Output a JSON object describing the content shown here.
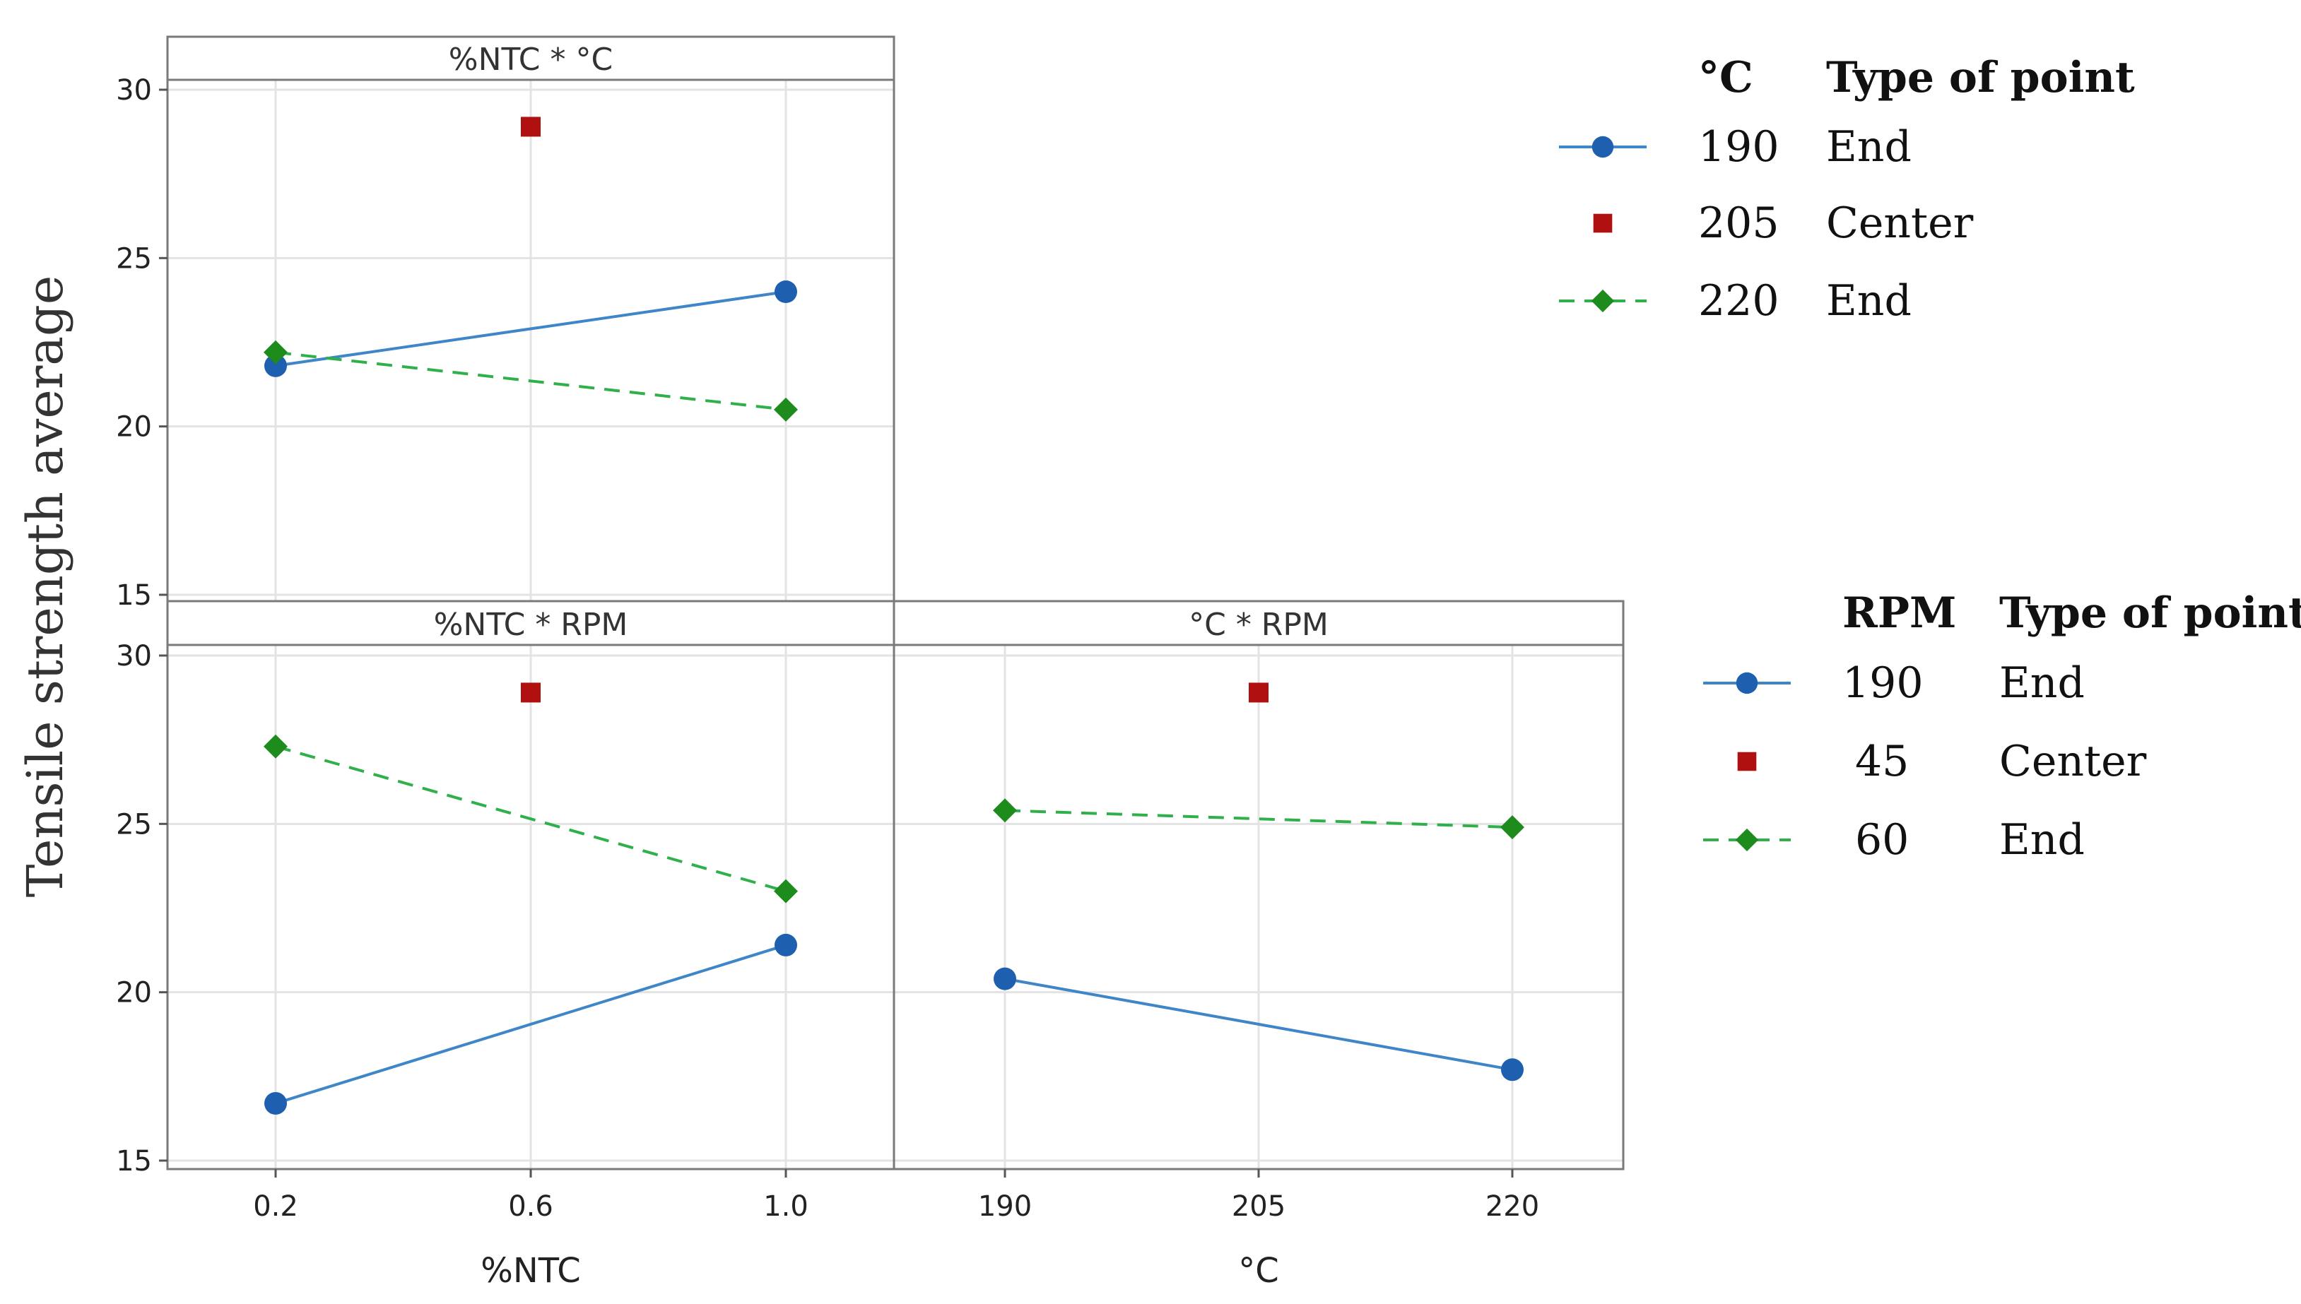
{
  "chart_data": {
    "type": "line",
    "title": "",
    "ylabel": "Tensile strength average",
    "ylim": [
      15,
      30
    ],
    "yticks": [
      "15",
      "20",
      "25",
      "30"
    ],
    "colors": {
      "blue": "#1f5fb0",
      "red": "#b01010",
      "green": "#1d8c1d",
      "line_blue": "#3f86c9",
      "line_green": "#2fb04a"
    },
    "panels": [
      {
        "id": "ntc_c",
        "title": "%NTC * °C",
        "xticks": [
          "0.2",
          "0.6",
          "1.0"
        ],
        "x": [
          0.2,
          0.6,
          1.0
        ],
        "series": [
          {
            "name": "190",
            "type_of_point": "End",
            "style": "solid-circle",
            "x": [
              0.2,
              1.0
            ],
            "values": [
              21.8,
              24.0
            ]
          },
          {
            "name": "205",
            "type_of_point": "Center",
            "style": "square",
            "x": [
              0.6
            ],
            "values": [
              28.9
            ]
          },
          {
            "name": "220",
            "type_of_point": "End",
            "style": "dashed-diamond",
            "x": [
              0.2,
              1.0
            ],
            "values": [
              22.2,
              20.5
            ]
          }
        ]
      },
      {
        "id": "ntc_rpm",
        "title": "%NTC * RPM",
        "xlabel": "%NTC",
        "xticks": [
          "0.2",
          "0.6",
          "1.0"
        ],
        "x": [
          0.2,
          0.6,
          1.0
        ],
        "series": [
          {
            "name": "190",
            "type_of_point": "End",
            "style": "solid-circle",
            "x": [
              0.2,
              1.0
            ],
            "values": [
              16.7,
              21.4
            ]
          },
          {
            "name": "45",
            "type_of_point": "Center",
            "style": "square",
            "x": [
              0.6
            ],
            "values": [
              28.9
            ]
          },
          {
            "name": "60",
            "type_of_point": "End",
            "style": "dashed-diamond",
            "x": [
              0.2,
              1.0
            ],
            "values": [
              27.3,
              23.0
            ]
          }
        ]
      },
      {
        "id": "c_rpm",
        "title": "°C * RPM",
        "xlabel": "°C",
        "xticks": [
          "190",
          "205",
          "220"
        ],
        "x": [
          190,
          205,
          220
        ],
        "series": [
          {
            "name": "190",
            "type_of_point": "End",
            "style": "solid-circle",
            "x": [
              190,
              220
            ],
            "values": [
              20.4,
              17.7
            ]
          },
          {
            "name": "45",
            "type_of_point": "Center",
            "style": "square",
            "x": [
              205
            ],
            "values": [
              28.9
            ]
          },
          {
            "name": "60",
            "type_of_point": "End",
            "style": "dashed-diamond",
            "x": [
              190,
              220
            ],
            "values": [
              25.4,
              24.9
            ]
          }
        ]
      }
    ],
    "legends": [
      {
        "id": "temp",
        "factor_header": "°C",
        "type_header": "Type of point",
        "entries": [
          {
            "value": "190",
            "type": "End",
            "style": "solid-circle"
          },
          {
            "value": "205",
            "type": "Center",
            "style": "square"
          },
          {
            "value": "220",
            "type": "End",
            "style": "dashed-diamond"
          }
        ]
      },
      {
        "id": "rpm",
        "factor_header": "RPM",
        "type_header": "Type of point",
        "entries": [
          {
            "value": "190",
            "type": "End",
            "style": "solid-circle"
          },
          {
            "value": "45",
            "type": "Center",
            "style": "square"
          },
          {
            "value": "60",
            "type": "End",
            "style": "dashed-diamond"
          }
        ]
      }
    ]
  }
}
